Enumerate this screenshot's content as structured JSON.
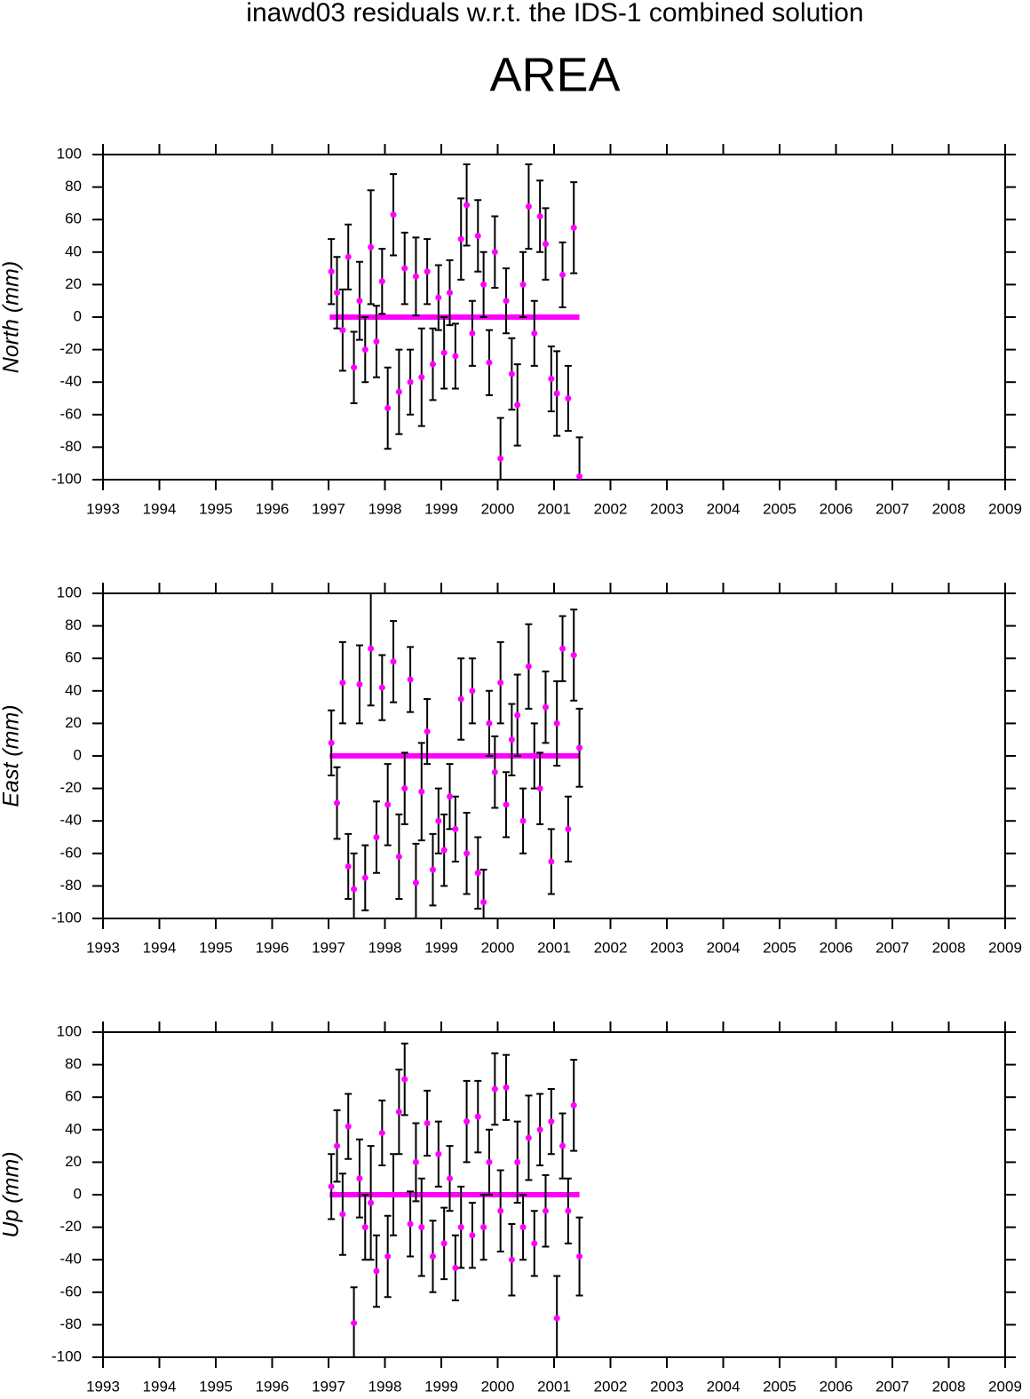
{
  "header": {
    "title": "inawd03 residuals w.r.t. the IDS-1 combined solution",
    "subtitle": "AREA"
  },
  "chart_data": [
    {
      "type": "scatter",
      "ylabel": "North (mm)",
      "color": "#ff00ff",
      "error_color": "#000000",
      "xlim": [
        1993,
        2009
      ],
      "ylim": [
        -100,
        100
      ],
      "xticks": [
        1993,
        1994,
        1995,
        1996,
        1997,
        1998,
        1999,
        2000,
        2001,
        2002,
        2003,
        2004,
        2005,
        2006,
        2007,
        2008,
        2009
      ],
      "yticks": [
        -100,
        -80,
        -60,
        -40,
        -20,
        0,
        20,
        40,
        60,
        80,
        100
      ],
      "x": [
        1997.05,
        1997.15,
        1997.25,
        1997.35,
        1997.45,
        1997.55,
        1997.65,
        1997.75,
        1997.85,
        1997.95,
        1998.05,
        1998.15,
        1998.25,
        1998.35,
        1998.45,
        1998.55,
        1998.65,
        1998.75,
        1998.85,
        1998.95,
        1999.05,
        1999.15,
        1999.25,
        1999.35,
        1999.45,
        1999.55,
        1999.65,
        1999.75,
        1999.85,
        1999.95,
        2000.05,
        2000.15,
        2000.25,
        2000.35,
        2000.45,
        2000.55,
        2000.65,
        2000.75,
        2000.85,
        2000.95,
        2001.05,
        2001.15,
        2001.25,
        2001.35,
        2001.45
      ],
      "values": [
        28,
        15,
        -8,
        37,
        -31,
        10,
        -20,
        43,
        -15,
        22,
        -56,
        63,
        -46,
        30,
        -40,
        25,
        -37,
        28,
        -29,
        12,
        -22,
        15,
        -24,
        48,
        69,
        -10,
        50,
        20,
        -28,
        40,
        -87,
        10,
        -35,
        -54,
        20,
        68,
        -10,
        62,
        45,
        -38,
        -47,
        26,
        -50,
        55,
        -98
      ],
      "errors": [
        20,
        22,
        25,
        20,
        22,
        24,
        20,
        35,
        22,
        20,
        25,
        25,
        26,
        22,
        20,
        24,
        30,
        20,
        22,
        20,
        22,
        20,
        20,
        25,
        25,
        20,
        22,
        20,
        20,
        22,
        25,
        20,
        22,
        25,
        20,
        26,
        20,
        22,
        22,
        20,
        26,
        20,
        20,
        28,
        24
      ],
      "zero_line": {
        "x": [
          1997.02,
          2001.45
        ],
        "values": [
          0,
          0
        ]
      }
    },
    {
      "type": "scatter",
      "ylabel": "East (mm)",
      "color": "#ff00ff",
      "error_color": "#000000",
      "xlim": [
        1993,
        2009
      ],
      "ylim": [
        -100,
        100
      ],
      "xticks": [
        1993,
        1994,
        1995,
        1996,
        1997,
        1998,
        1999,
        2000,
        2001,
        2002,
        2003,
        2004,
        2005,
        2006,
        2007,
        2008,
        2009
      ],
      "yticks": [
        -100,
        -80,
        -60,
        -40,
        -20,
        0,
        20,
        40,
        60,
        80,
        100
      ],
      "x": [
        1997.05,
        1997.15,
        1997.25,
        1997.35,
        1997.45,
        1997.55,
        1997.65,
        1997.75,
        1997.85,
        1997.95,
        1998.05,
        1998.15,
        1998.25,
        1998.35,
        1998.45,
        1998.55,
        1998.65,
        1998.75,
        1998.85,
        1998.95,
        1999.05,
        1999.15,
        1999.25,
        1999.35,
        1999.45,
        1999.55,
        1999.65,
        1999.75,
        1999.85,
        1999.95,
        2000.05,
        2000.15,
        2000.25,
        2000.35,
        2000.45,
        2000.55,
        2000.65,
        2000.75,
        2000.85,
        2000.95,
        2001.05,
        2001.15,
        2001.25,
        2001.35,
        2001.45
      ],
      "values": [
        8,
        -29,
        45,
        -68,
        -82,
        44,
        -75,
        66,
        -50,
        42,
        -30,
        58,
        -62,
        -20,
        47,
        -78,
        -22,
        15,
        -70,
        -40,
        -58,
        -25,
        -45,
        35,
        -60,
        40,
        -72,
        -90,
        20,
        -10,
        45,
        -30,
        10,
        25,
        -40,
        55,
        0,
        -20,
        30,
        -65,
        20,
        66,
        -45,
        62,
        5
      ],
      "errors": [
        20,
        22,
        25,
        20,
        22,
        24,
        20,
        35,
        22,
        20,
        25,
        25,
        26,
        22,
        20,
        24,
        30,
        20,
        22,
        20,
        22,
        20,
        20,
        25,
        25,
        20,
        22,
        20,
        20,
        22,
        25,
        20,
        22,
        25,
        20,
        26,
        20,
        22,
        22,
        20,
        26,
        20,
        20,
        28,
        24
      ],
      "zero_line": {
        "x": [
          1997.02,
          2001.45
        ],
        "values": [
          0,
          0
        ]
      }
    },
    {
      "type": "scatter",
      "ylabel": "Up (mm)",
      "color": "#ff00ff",
      "error_color": "#000000",
      "xlim": [
        1993,
        2009
      ],
      "ylim": [
        -100,
        100
      ],
      "xticks": [
        1993,
        1994,
        1995,
        1996,
        1997,
        1998,
        1999,
        2000,
        2001,
        2002,
        2003,
        2004,
        2005,
        2006,
        2007,
        2008,
        2009
      ],
      "yticks": [
        -100,
        -80,
        -60,
        -40,
        -20,
        0,
        20,
        40,
        60,
        80,
        100
      ],
      "x": [
        1997.05,
        1997.15,
        1997.25,
        1997.35,
        1997.45,
        1997.55,
        1997.65,
        1997.75,
        1997.85,
        1997.95,
        1998.05,
        1998.15,
        1998.25,
        1998.35,
        1998.45,
        1998.55,
        1998.65,
        1998.75,
        1998.85,
        1998.95,
        1999.05,
        1999.15,
        1999.25,
        1999.35,
        1999.45,
        1999.55,
        1999.65,
        1999.75,
        1999.85,
        1999.95,
        2000.05,
        2000.15,
        2000.25,
        2000.35,
        2000.45,
        2000.55,
        2000.65,
        2000.75,
        2000.85,
        2000.95,
        2001.05,
        2001.15,
        2001.25,
        2001.35,
        2001.45
      ],
      "values": [
        5,
        30,
        -12,
        42,
        -79,
        10,
        -20,
        -5,
        -47,
        38,
        -38,
        0,
        51,
        71,
        -18,
        20,
        -20,
        44,
        -38,
        25,
        -30,
        10,
        -45,
        -20,
        45,
        -25,
        48,
        -20,
        20,
        65,
        -10,
        66,
        -40,
        20,
        -20,
        35,
        -30,
        40,
        -10,
        45,
        -76,
        30,
        -10,
        55,
        -38
      ],
      "errors": [
        20,
        22,
        25,
        20,
        22,
        24,
        20,
        35,
        22,
        20,
        25,
        25,
        26,
        22,
        20,
        24,
        30,
        20,
        22,
        20,
        22,
        20,
        20,
        25,
        25,
        20,
        22,
        20,
        20,
        22,
        25,
        20,
        22,
        25,
        20,
        26,
        20,
        22,
        22,
        20,
        26,
        20,
        20,
        28,
        24
      ],
      "zero_line": {
        "x": [
          1997.02,
          2001.45
        ],
        "values": [
          0,
          0
        ]
      }
    }
  ]
}
